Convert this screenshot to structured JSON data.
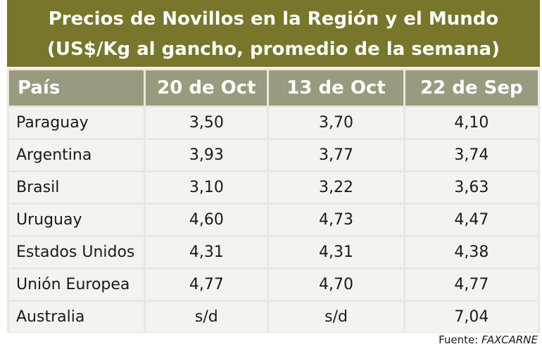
{
  "title": {
    "line1": "Precios de Novillos en la Región y el Mundo",
    "line2": "(US$/Kg al gancho, promedio de la semana)"
  },
  "colors": {
    "title_bg": "#77762a",
    "header_bg": "#9a9a7e",
    "row_bg": "#f3f3ef",
    "grid_bg": "#e8e8de"
  },
  "source": {
    "label": "Fuente:",
    "name": "FAXCARNE"
  },
  "chart_data": {
    "type": "table",
    "title": "Precios de Novillos en la Región y el Mundo (US$/Kg al gancho, promedio de la semana)",
    "columns": [
      "País",
      "20 de Oct",
      "13 de Oct",
      "22 de Sep"
    ],
    "rows": [
      [
        "Paraguay",
        "3,50",
        "3,70",
        "4,10"
      ],
      [
        "Argentina",
        "3,93",
        "3,77",
        "3,74"
      ],
      [
        "Brasil",
        "3,10",
        "3,22",
        "3,63"
      ],
      [
        "Uruguay",
        "4,60",
        "4,73",
        "4,47"
      ],
      [
        "Estados Unidos",
        "4,31",
        "4,31",
        "4,38"
      ],
      [
        "Unión Europea",
        "4,77",
        "4,70",
        "4,77"
      ],
      [
        "Australia",
        "s/d",
        "s/d",
        "7,04"
      ]
    ]
  }
}
